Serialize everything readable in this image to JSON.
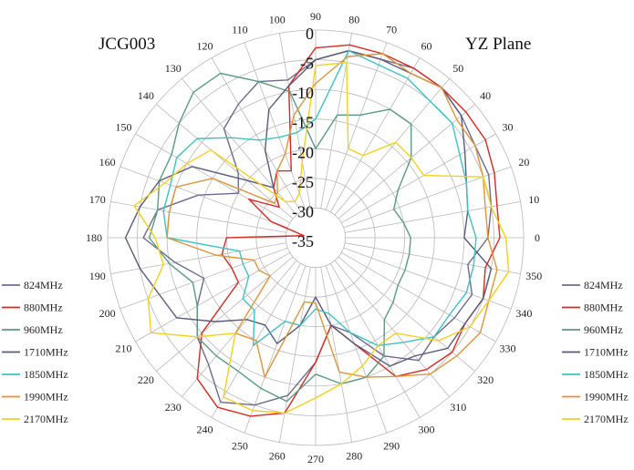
{
  "chart_data": {
    "type": "polar-line",
    "title_left": "JCG003",
    "title_right": "YZ Plane",
    "angle_labels": [
      "0",
      "10",
      "20",
      "30",
      "40",
      "50",
      "60",
      "70",
      "80",
      "90",
      "100",
      "110",
      "120",
      "130",
      "140",
      "150",
      "160",
      "170",
      "180",
      "190",
      "200",
      "210",
      "220",
      "230",
      "240",
      "250",
      "260",
      "270",
      "280",
      "290",
      "300",
      "310",
      "320",
      "330",
      "340",
      "350"
    ],
    "radial_ticks": [
      "0",
      "-5",
      "-10",
      "-15",
      "-20",
      "-25",
      "-30",
      "-35"
    ],
    "radial_range": [
      -35,
      0
    ],
    "angles_deg": [
      0,
      10,
      20,
      30,
      40,
      50,
      60,
      70,
      80,
      90,
      100,
      110,
      120,
      130,
      140,
      150,
      160,
      170,
      180,
      190,
      200,
      210,
      220,
      230,
      240,
      250,
      260,
      270,
      280,
      290,
      300,
      310,
      320,
      330,
      340,
      350
    ],
    "series": [
      {
        "name": "824MHz",
        "color": "#6b6b90",
        "values": [
          -6,
          -5,
          -4,
          -4,
          -3,
          -2,
          -2,
          -3,
          -3,
          -5,
          -8,
          -7,
          -9,
          -11,
          -18,
          -20,
          -14,
          -8,
          -6,
          -11,
          -15,
          -12,
          -9,
          -7,
          -3,
          -5,
          -8,
          -14,
          -20,
          -18,
          -12,
          -8,
          -9,
          -8,
          -7,
          -9
        ]
      },
      {
        "name": "880MHz",
        "color": "#d42a22",
        "values": [
          -4,
          -4,
          -3,
          -2,
          -2,
          -2,
          -2,
          -2,
          -2,
          -3,
          -9,
          -23,
          -22,
          -24,
          -27,
          -22,
          -27,
          -33,
          -20,
          -19,
          -20,
          -20,
          -10,
          -4,
          -2,
          -3,
          -5,
          -14,
          -20,
          -16,
          -8,
          -6,
          -5,
          -6,
          -5,
          -6
        ]
      },
      {
        "name": "960MHz",
        "color": "#5a9a82",
        "values": [
          -19,
          -20,
          -21,
          -19,
          -14,
          -10,
          -10,
          -13,
          -14,
          -20,
          -10,
          -7,
          -3,
          -3,
          -5,
          -7,
          -7,
          -8,
          -7,
          -10,
          -13,
          -12,
          -9,
          -9,
          -9,
          -8,
          -7,
          -12,
          -10,
          -10,
          -12,
          -17,
          -18,
          -19,
          -19,
          -19
        ]
      },
      {
        "name": "1710MHz",
        "color": "#5a5a7a",
        "values": [
          -10,
          -9,
          -8,
          -6,
          -3,
          -2,
          -3,
          -3,
          -3,
          -5,
          -9,
          -12,
          -18,
          -24,
          -20,
          -11,
          -7,
          -5,
          -3,
          -5,
          -7,
          -8,
          -13,
          -17,
          -18,
          -16,
          -20,
          -25,
          -20,
          -16,
          -10,
          -9,
          -6,
          -6,
          -5,
          -5
        ]
      },
      {
        "name": "1850MHz",
        "color": "#3ec2c4",
        "values": [
          -8,
          -9,
          -8,
          -7,
          -5,
          -5,
          -4,
          -4,
          -3,
          -15,
          -17,
          -17,
          -16,
          -13,
          -9,
          -8,
          -9,
          -9,
          -10,
          -22,
          -22,
          -22,
          -19,
          -19,
          -14,
          -20,
          -20,
          -23,
          -22,
          -18,
          -14,
          -12,
          -9,
          -9,
          -8,
          -8
        ]
      },
      {
        "name": "1990MHz",
        "color": "#e0943a",
        "values": [
          -6,
          -6,
          -5,
          -4,
          -4,
          -2,
          -3,
          -2,
          -4,
          -9,
          -14,
          -20,
          -22,
          -25,
          -26,
          -15,
          -10,
          -10,
          -10,
          -18,
          -24,
          -24,
          -25,
          -14,
          -15,
          -10,
          -24,
          -24,
          -12,
          -10,
          -8,
          -5,
          -4,
          -3,
          -4,
          -4
        ]
      },
      {
        "name": "2170MHz",
        "color": "#f2d21e",
        "values": [
          -3,
          -5,
          -5,
          -14,
          -14,
          -14,
          -19,
          -19,
          -5,
          -6,
          -22,
          -27,
          -28,
          -27,
          -12,
          -10,
          -8,
          -4,
          -8,
          -9,
          -5,
          -3,
          -9,
          -14,
          -4,
          -4,
          -5,
          -8,
          -10,
          -12,
          -14,
          -14,
          -8,
          -5,
          -4,
          -2
        ]
      }
    ]
  }
}
